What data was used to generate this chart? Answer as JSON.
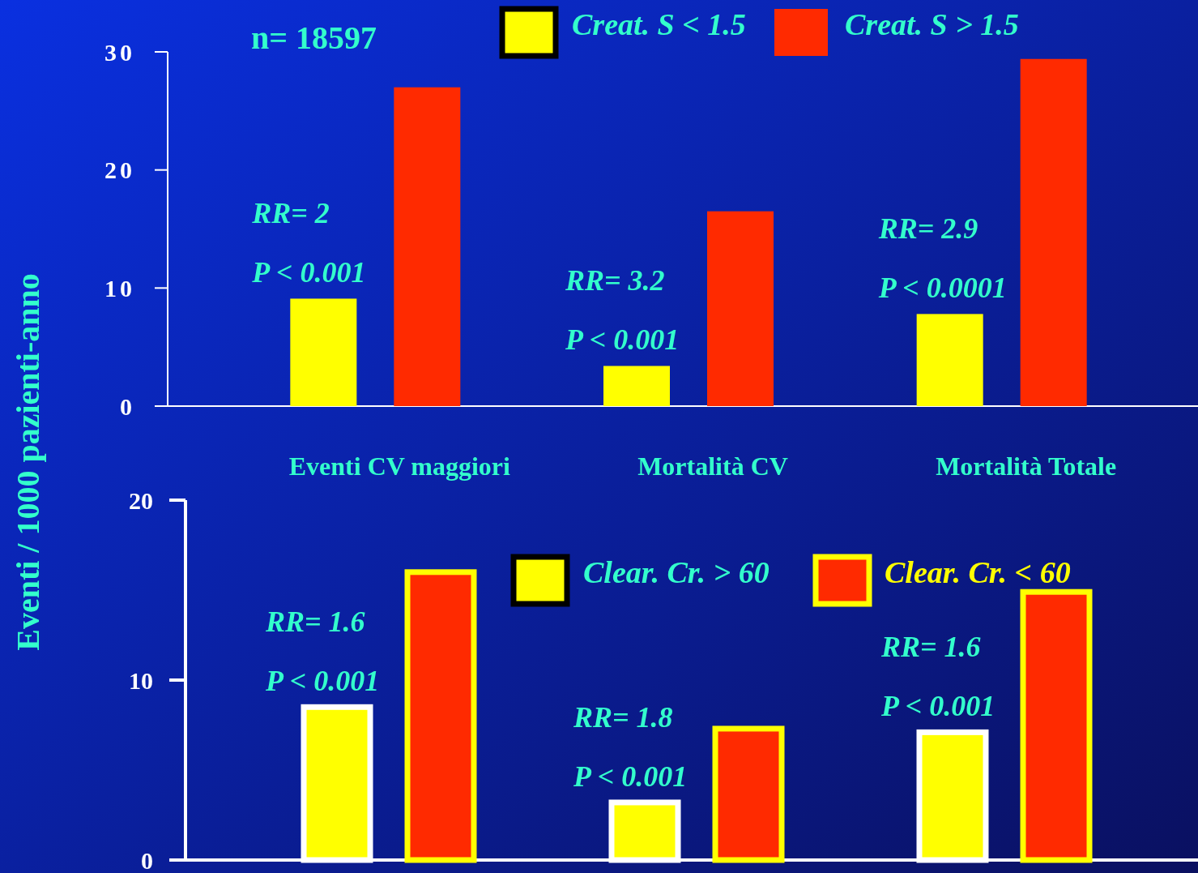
{
  "chart_data": [
    {
      "type": "bar",
      "subtitle": "n= 18597",
      "ylabel": "Eventi / 1000 pazienti-anno",
      "categories": [
        "Eventi CV maggiori",
        "Mortalità CV",
        "Mortalità Totale"
      ],
      "series": [
        {
          "name": "Creat. S < 1.5",
          "color": "#ffff00",
          "values": [
            9.1,
            3.4,
            7.8
          ]
        },
        {
          "name": "Creat. S > 1.5",
          "color": "#ff2a00",
          "values": [
            27.0,
            16.5,
            29.4
          ]
        }
      ],
      "ylim": [
        0,
        30
      ],
      "yticks": [
        0,
        10,
        20,
        30
      ],
      "legend": "top",
      "grid": false,
      "annotations": [
        "RR= 2",
        "P < 0.001",
        "RR= 3.2",
        "P < 0.001",
        "RR= 2.9",
        "P < 0.0001"
      ]
    },
    {
      "type": "bar",
      "categories": [
        null,
        null,
        null
      ],
      "series": [
        {
          "name": "Clear. Cr. > 60",
          "color": "#ffff00",
          "values": [
            8.5,
            3.2,
            7.1
          ]
        },
        {
          "name": "Clear. Cr. < 60",
          "color": "#ff2a00",
          "values": [
            16.0,
            7.3,
            14.9
          ]
        }
      ],
      "ylim": [
        0,
        20
      ],
      "yticks": [
        0,
        10,
        20
      ],
      "legend": "top right",
      "grid": false,
      "tick_labels": "y",
      "annotations": [
        "RR= 1.6",
        "P < 0.001",
        "RR= 1.8",
        "P < 0.001",
        "RR= 1.6",
        "P < 0.001"
      ]
    }
  ]
}
